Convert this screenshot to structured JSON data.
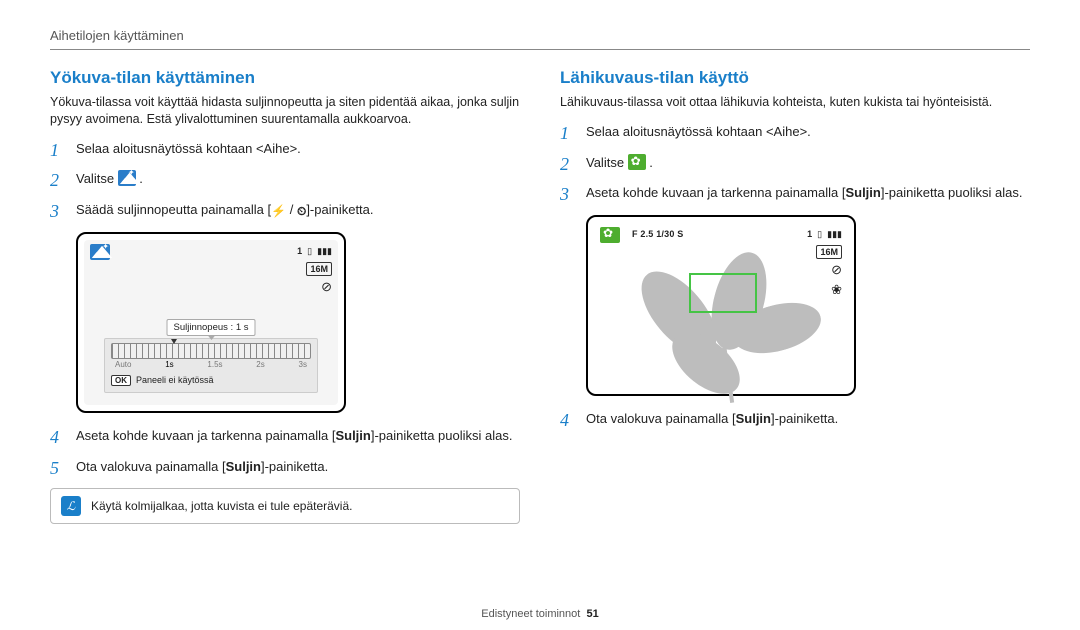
{
  "header": "Aihetilojen käyttäminen",
  "footer_label": "Edistyneet toiminnot",
  "footer_page": "51",
  "left": {
    "title": "Yökuva-tilan käyttäminen",
    "intro": "Yökuva-tilassa voit käyttää hidasta suljinnopeutta ja siten pidentää aikaa, jonka suljin pysyy avoimena. Estä ylivalottuminen suurentamalla aukkoarvoa.",
    "step1": "Selaa aloitusnäytössä kohtaan <Aihe>.",
    "step2_prefix": "Valitse ",
    "step3_prefix": "Säädä suljinnopeutta painamalla [",
    "step3_mid": " / ",
    "step3_suffix": "]-painiketta.",
    "flash_glyph": "⚡",
    "timer_glyph": "⏲",
    "lcd": {
      "mp": "16M",
      "battery": "▮▮▮",
      "card": "▯",
      "count": "1",
      "shutter_label": "Suljinnopeus : 1 s",
      "scale": [
        "Auto",
        "1s",
        "1.5s",
        "2s",
        "3s"
      ],
      "ok": "OK",
      "ok_text": "Paneeli ei käytössä"
    },
    "step4_a": "Aseta kohde kuvaan ja tarkenna painamalla [",
    "step4_bold": "Suljin",
    "step4_b": "]-painiketta puoliksi alas.",
    "step5_a": "Ota valokuva painamalla [",
    "step5_bold": "Suljin",
    "step5_b": "]-painiketta.",
    "note": "Käytä kolmijalkaa, jotta kuvista ei tule epäteräviä."
  },
  "right": {
    "title": "Lähikuvaus-tilan käyttö",
    "intro": "Lähikuvaus-tilassa voit ottaa lähikuvia kohteista, kuten kukista tai hyönteisistä.",
    "step1": "Selaa aloitusnäytössä kohtaan <Aihe>.",
    "step2_prefix": "Valitse ",
    "step3_a": "Aseta kohde kuvaan ja tarkenna painamalla [",
    "step3_bold": "Suljin",
    "step3_b": "]-painiketta puoliksi alas.",
    "lcd": {
      "exp": "F 2.5 1/30 S",
      "mp": "16M",
      "battery": "▮▮▮",
      "card": "▯",
      "count": "1"
    },
    "step4_a": "Ota valokuva painamalla [",
    "step4_bold": "Suljin",
    "step4_b": "]-painiketta."
  }
}
